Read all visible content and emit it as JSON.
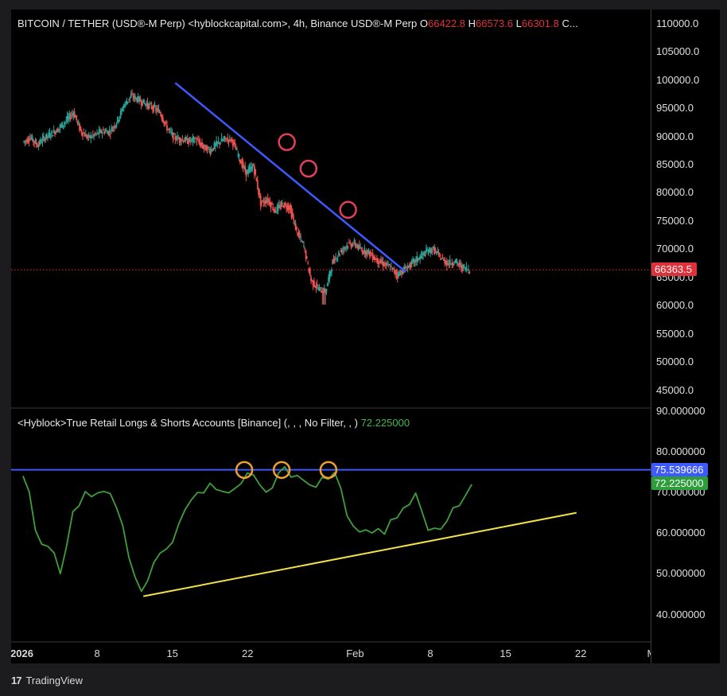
{
  "header": {
    "symbol": "BITCOIN / TETHER (USD®-M Perp) <hyblockcapital.com>, 4h, Binance USD®-M Perp",
    "o_label": "O",
    "o_value": "66422.8",
    "h_label": "H",
    "h_value": "66573.6",
    "l_label": "L",
    "l_value": "66301.8",
    "c_label": "C..."
  },
  "indicator": {
    "title": "<Hyblock>True Retail Longs & Shorts Accounts [Binance] (, , , No Filter, , )",
    "value": "72.225000"
  },
  "footer": {
    "brand": "TradingView"
  },
  "colors": {
    "bg": "#000000",
    "candle_up": "#26a69a",
    "candle_down": "#ef5350",
    "trendline": "#3d5afe",
    "support": "#f5e04a",
    "indicator_line": "#3fa03a",
    "price_marker": "#e0303a",
    "marker_circle_top": "#e0405a",
    "marker_circle_bottom": "#f0a030",
    "blue_label": "#3d5afe",
    "green_label": "#2e9e3a"
  },
  "chart_data": [
    {
      "type": "candlestick",
      "name": "BITCOIN / TETHER 4h",
      "y_ticks": [
        "110000.0",
        "105000.0",
        "100000.0",
        "95000.0",
        "90000.0",
        "85000.0",
        "80000.0",
        "75000.0",
        "70000.0",
        "65000.0",
        "60000.0",
        "55000.0",
        "50000.0",
        "45000.0"
      ],
      "ylim": [
        42000,
        112500
      ],
      "x_ticks": [
        "2026",
        "8",
        "15",
        "22",
        "Feb",
        "8",
        "15",
        "22",
        "Mar"
      ],
      "x_tick_days": [
        0,
        7,
        14,
        21,
        31,
        38,
        45,
        52,
        59
      ],
      "x_range_days": [
        -1,
        58.5
      ],
      "close_path": [
        [
          0,
          89000
        ],
        [
          1,
          89800
        ],
        [
          2,
          88500
        ],
        [
          3,
          89800
        ],
        [
          4,
          90500
        ],
        [
          5,
          91500
        ],
        [
          6,
          92800
        ],
        [
          7,
          94300
        ],
        [
          8,
          91000
        ],
        [
          9,
          89800
        ],
        [
          10,
          90300
        ],
        [
          11,
          91000
        ],
        [
          12,
          90800
        ],
        [
          13,
          92500
        ],
        [
          14,
          95500
        ],
        [
          15,
          97200
        ],
        [
          16,
          96500
        ],
        [
          17,
          95800
        ],
        [
          18,
          95200
        ],
        [
          19,
          94300
        ],
        [
          20,
          91500
        ],
        [
          21,
          89800
        ],
        [
          22,
          89500
        ],
        [
          23,
          89200
        ],
        [
          24,
          89500
        ],
        [
          25,
          88200
        ],
        [
          26,
          87500
        ],
        [
          27,
          88800
        ],
        [
          28,
          89500
        ],
        [
          29,
          89500
        ],
        [
          30,
          86200
        ],
        [
          31,
          83500
        ],
        [
          32,
          84800
        ],
        [
          33,
          78200
        ],
        [
          34,
          78800
        ],
        [
          35,
          76800
        ],
        [
          36,
          78000
        ],
        [
          37,
          77500
        ],
        [
          38,
          73200
        ],
        [
          39,
          70500
        ],
        [
          40,
          64500
        ],
        [
          41,
          63000
        ],
        [
          42,
          62500
        ],
        [
          43,
          67800
        ],
        [
          44,
          69500
        ],
        [
          45,
          70800
        ],
        [
          46,
          71000
        ],
        [
          47,
          69800
        ],
        [
          48,
          69500
        ],
        [
          49,
          68200
        ],
        [
          50,
          67500
        ],
        [
          51,
          66800
        ],
        [
          52,
          65500
        ],
        [
          53,
          66500
        ],
        [
          54,
          67500
        ],
        [
          55,
          68500
        ],
        [
          56,
          69500
        ],
        [
          57,
          70000
        ],
        [
          58,
          68500
        ],
        [
          59,
          67500
        ],
        [
          60,
          67800
        ],
        [
          61,
          66800
        ],
        [
          62,
          66363
        ]
      ],
      "current_price": "66363.5",
      "current_price_value": 66363.5,
      "trendline": [
        [
          21,
          99500
        ],
        [
          53,
          66000
        ]
      ],
      "circled_points": [
        [
          36.5,
          89000
        ],
        [
          39.5,
          84300
        ],
        [
          45.0,
          77000
        ]
      ]
    },
    {
      "type": "line",
      "name": "True Retail Longs & Shorts Accounts",
      "y_ticks": [
        "90.000000",
        "80.000000",
        "70.000000",
        "60.000000",
        "50.000000",
        "40.000000"
      ],
      "ylim": [
        33.5,
        90.5
      ],
      "points": [
        [
          0,
          74
        ],
        [
          1,
          70
        ],
        [
          2,
          61
        ],
        [
          3,
          57
        ],
        [
          4,
          57
        ],
        [
          5,
          55
        ],
        [
          6,
          50
        ],
        [
          7,
          57
        ],
        [
          8,
          65
        ],
        [
          9,
          67
        ],
        [
          10,
          70
        ],
        [
          11,
          69
        ],
        [
          12,
          70
        ],
        [
          13,
          70
        ],
        [
          14,
          70
        ],
        [
          15,
          66
        ],
        [
          16,
          62
        ],
        [
          17,
          54
        ],
        [
          18,
          49
        ],
        [
          19,
          46
        ],
        [
          20,
          48
        ],
        [
          21,
          53
        ],
        [
          22,
          55
        ],
        [
          23,
          56
        ],
        [
          24,
          58
        ],
        [
          25,
          62
        ],
        [
          26,
          66
        ],
        [
          27,
          68
        ],
        [
          28,
          70
        ],
        [
          29,
          70
        ],
        [
          30,
          72
        ],
        [
          31,
          71
        ],
        [
          32,
          70
        ],
        [
          33,
          70
        ],
        [
          34,
          71
        ],
        [
          35,
          72
        ],
        [
          36,
          75
        ],
        [
          37,
          74
        ],
        [
          38,
          72
        ],
        [
          39,
          70
        ],
        [
          40,
          71
        ],
        [
          41,
          75
        ],
        [
          42,
          76
        ],
        [
          43,
          74
        ],
        [
          44,
          74
        ],
        [
          45,
          73
        ],
        [
          46,
          72
        ],
        [
          47,
          71
        ],
        [
          48,
          74
        ],
        [
          49,
          73
        ],
        [
          50,
          75
        ],
        [
          51,
          71
        ],
        [
          52,
          64
        ],
        [
          53,
          62
        ],
        [
          54,
          60
        ],
        [
          55,
          61
        ],
        [
          56,
          60
        ],
        [
          57,
          61
        ],
        [
          58,
          60
        ],
        [
          59,
          63
        ],
        [
          60,
          64
        ],
        [
          61,
          66
        ],
        [
          62,
          67
        ],
        [
          63,
          70
        ],
        [
          64,
          65
        ],
        [
          65,
          61
        ],
        [
          66,
          61
        ],
        [
          67,
          61
        ],
        [
          68,
          63
        ],
        [
          69,
          66
        ],
        [
          70,
          67
        ],
        [
          71,
          69
        ],
        [
          72,
          72
        ]
      ],
      "blue_level": "75.539666",
      "blue_level_value": 75.539666,
      "current_value": "72.225000",
      "current_value_num": 72.225,
      "support_line": [
        [
          0,
          44.5
        ],
        [
          56,
          65.0
        ]
      ],
      "circled_points": [
        [
          35.5,
          75.5
        ],
        [
          41.5,
          75.5
        ],
        [
          49.0,
          75.5
        ]
      ]
    }
  ]
}
